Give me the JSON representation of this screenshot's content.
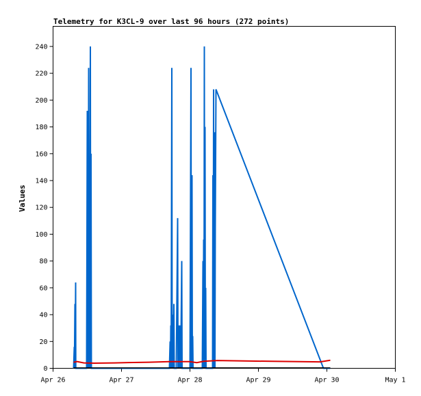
{
  "chart_data": {
    "type": "line",
    "title": "Telemetry for K3CL-9 over last 96 hours (272 points)",
    "xlabel": "",
    "ylabel": "Values",
    "xlim": [
      "Apr 26",
      "May 1"
    ],
    "ylim": [
      0,
      255
    ],
    "grid": false,
    "x_ticks": [
      {
        "label": "Apr 26",
        "day": 0
      },
      {
        "label": "Apr 27",
        "day": 1
      },
      {
        "label": "Apr 28",
        "day": 2
      },
      {
        "label": "Apr 29",
        "day": 3
      },
      {
        "label": "Apr 30",
        "day": 4
      },
      {
        "label": "May 1",
        "day": 5
      }
    ],
    "y_ticks": [
      0,
      20,
      40,
      60,
      80,
      100,
      120,
      140,
      160,
      180,
      200,
      220,
      240
    ],
    "series": [
      {
        "color": "#0066cc",
        "points": [
          [
            0.3,
            0
          ],
          [
            0.31,
            16
          ],
          [
            0.312,
            0
          ],
          [
            0.32,
            48
          ],
          [
            0.322,
            0
          ],
          [
            0.33,
            64
          ],
          [
            0.332,
            0
          ],
          [
            0.49,
            0
          ],
          [
            0.5,
            192
          ],
          [
            0.505,
            0
          ],
          [
            0.51,
            96
          ],
          [
            0.515,
            0
          ],
          [
            0.52,
            224
          ],
          [
            0.525,
            0
          ],
          [
            0.53,
            136
          ],
          [
            0.535,
            0
          ],
          [
            0.545,
            240
          ],
          [
            0.55,
            0
          ],
          [
            0.555,
            160
          ],
          [
            0.56,
            0
          ],
          [
            1.7,
            0
          ],
          [
            1.71,
            20
          ],
          [
            1.715,
            0
          ],
          [
            1.72,
            32
          ],
          [
            1.725,
            0
          ],
          [
            1.735,
            224
          ],
          [
            1.74,
            0
          ],
          [
            1.75,
            40
          ],
          [
            1.755,
            0
          ],
          [
            1.765,
            48
          ],
          [
            1.77,
            0
          ],
          [
            1.8,
            0
          ],
          [
            1.82,
            112
          ],
          [
            1.825,
            0
          ],
          [
            1.84,
            32
          ],
          [
            1.845,
            0
          ],
          [
            1.86,
            32
          ],
          [
            1.865,
            0
          ],
          [
            1.88,
            80
          ],
          [
            1.885,
            0
          ],
          [
            1.9,
            0
          ],
          [
            2.0,
            0
          ],
          [
            2.015,
            224
          ],
          [
            2.02,
            0
          ],
          [
            2.03,
            144
          ],
          [
            2.035,
            0
          ],
          [
            2.04,
            24
          ],
          [
            2.045,
            0
          ],
          [
            2.18,
            0
          ],
          [
            2.19,
            80
          ],
          [
            2.195,
            0
          ],
          [
            2.2,
            96
          ],
          [
            2.205,
            0
          ],
          [
            2.21,
            240
          ],
          [
            2.215,
            0
          ],
          [
            2.22,
            180
          ],
          [
            2.225,
            0
          ],
          [
            2.23,
            60
          ],
          [
            2.235,
            0
          ],
          [
            2.33,
            0
          ],
          [
            2.335,
            144
          ],
          [
            2.34,
            0
          ],
          [
            2.345,
            208
          ],
          [
            2.35,
            0
          ],
          [
            2.36,
            176
          ],
          [
            2.365,
            0
          ],
          [
            2.37,
            104
          ],
          [
            2.38,
            208
          ],
          [
            3.95,
            0
          ],
          [
            3.96,
            0
          ],
          [
            4.05,
            0
          ]
        ]
      },
      {
        "color": "#dd0000",
        "points": [
          [
            0.3,
            4.5
          ],
          [
            0.35,
            5.0
          ],
          [
            0.45,
            4.0
          ],
          [
            0.6,
            3.8
          ],
          [
            0.9,
            4.0
          ],
          [
            1.1,
            4.3
          ],
          [
            1.4,
            4.5
          ],
          [
            1.7,
            5.0
          ],
          [
            2.0,
            5.0
          ],
          [
            2.1,
            4.2
          ],
          [
            2.2,
            5.2
          ],
          [
            2.4,
            5.8
          ],
          [
            2.8,
            5.5
          ],
          [
            3.2,
            5.2
          ],
          [
            3.6,
            5.0
          ],
          [
            3.9,
            4.8
          ],
          [
            4.05,
            6.0
          ]
        ]
      },
      {
        "color": "#000000",
        "points": [
          [
            0.3,
            0.3
          ],
          [
            1.0,
            0.3
          ],
          [
            2.0,
            0.3
          ],
          [
            3.0,
            0.3
          ],
          [
            4.05,
            0.3
          ]
        ]
      }
    ]
  }
}
